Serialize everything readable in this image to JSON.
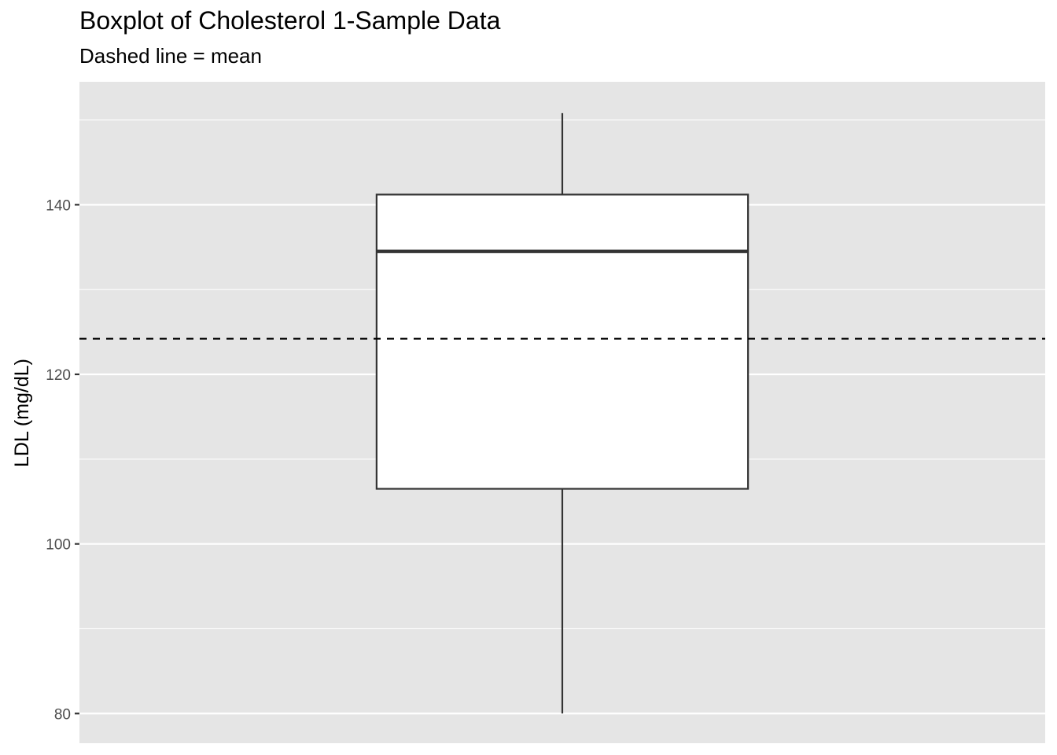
{
  "chart_data": {
    "type": "boxplot",
    "title": "Boxplot of Cholesterol 1-Sample Data",
    "subtitle": "Dashed line = mean",
    "xlabel": "",
    "ylabel": "LDL (mg/dL)",
    "ylim": [
      76.5,
      154.5
    ],
    "yticks": [
      80,
      100,
      120,
      140
    ],
    "ytick_labels": [
      "80",
      "100",
      "120",
      "140"
    ],
    "grid": true,
    "box": {
      "whisker_low": 80,
      "q1": 106.5,
      "median": 134.5,
      "q3": 141.2,
      "whisker_high": 150.8
    },
    "mean": 124.2,
    "colors": {
      "panel": "#e5e5e5",
      "grid": "#ffffff",
      "box_fill": "#ffffff",
      "box_stroke": "#333333",
      "mean_line": "#000000"
    }
  }
}
